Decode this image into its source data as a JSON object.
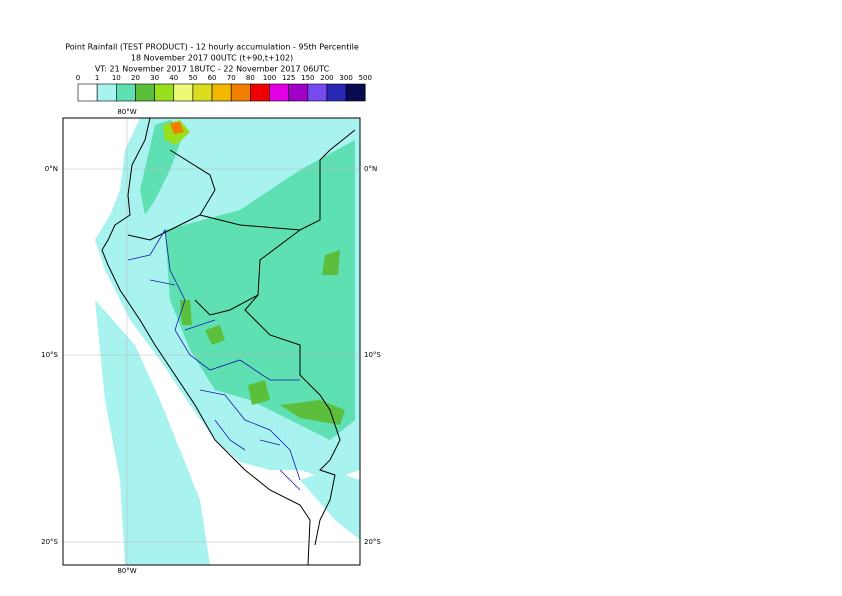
{
  "header": {
    "title": [
      "Point Rainfall (TEST PRODUCT) - 12 hourly accumulation - 95th Percentile",
      "18 November 2017 00UTC (t+90,t+102)",
      "VT: 21 November 2017 18UTC - 22 November 2017 06UTC"
    ]
  },
  "legend": {
    "labels": [
      "0",
      "1",
      "10",
      "20",
      "30",
      "40",
      "50",
      "60",
      "70",
      "80",
      "100",
      "125",
      "150",
      "200",
      "300",
      "500"
    ],
    "colors": [
      "#ffffff",
      "#a8f2f0",
      "#5fe0b2",
      "#5cbf3c",
      "#98e01c",
      "#ecfa78",
      "#dcdc1e",
      "#f2b800",
      "#f28000",
      "#f20000",
      "#e400e4",
      "#a000c8",
      "#7848f0",
      "#2828b4",
      "#0a0a50"
    ]
  },
  "map": {
    "lon_labels": {
      "top": "80°W",
      "bottom": "80°W"
    },
    "lat_labels": [
      {
        "left": "0°N",
        "right": "0°N"
      },
      {
        "left": "10°S",
        "right": "10°S"
      },
      {
        "left": "20°S",
        "right": "20°S"
      }
    ]
  }
}
